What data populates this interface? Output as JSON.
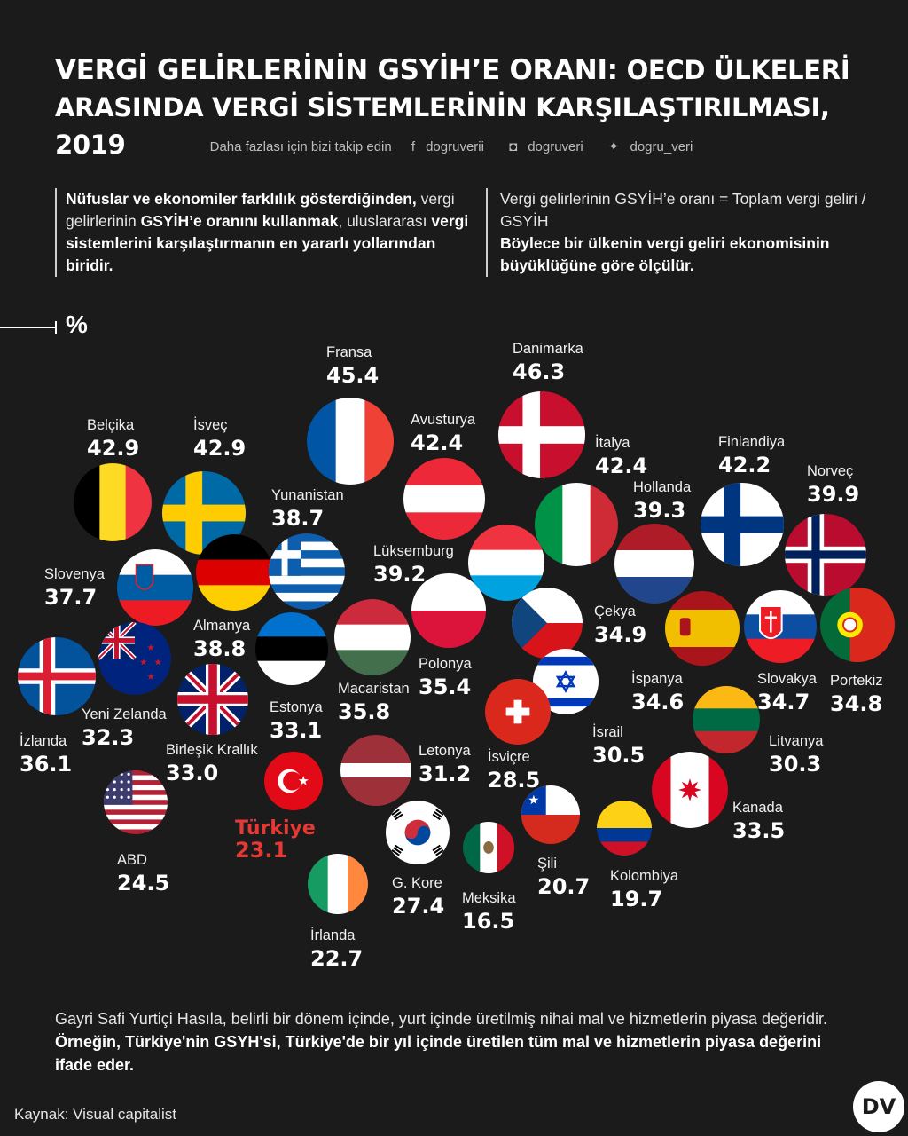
{
  "title_line1_bold": "VERGİ GELİRLERİNİN GSYİH’E ORANI:",
  "title_line1_rest": " OECD ÜLKELERİ",
  "title_line2": "ARASINDA VERGİ SİSTEMLERİNİN KARŞILAŞTIRILMASI, 2019",
  "social": {
    "follow": "Daha fazlası için bizi takip edin",
    "facebook": "dogruverii",
    "instagram": "dogruveri",
    "twitter": "dogru_veri",
    "facebook_icon": "facebook-icon",
    "instagram_icon": "instagram-icon",
    "twitter_icon": "twitter-icon"
  },
  "intro_left": {
    "p1_bold": "Nüfuslar ve ekonomiler farklılık gösterdiğinden,",
    "p2": " vergi gelirlerinin ",
    "p3_bold": "GSYİH’e oranını kullanmak",
    "p4": ", uluslararası ",
    "p5_bold": "vergi sistemlerini karşılaştırmanın en yararlı yollarından biridir."
  },
  "intro_right": {
    "p1": "Vergi gelirlerinin GSYİH’e oranı = Toplam vergi geliri / GSYİH",
    "p2_bold": "Böylece bir ülkenin vergi geliri ekonomisinin büyüklüğüne göre ölçülür."
  },
  "unit": "%",
  "footer": {
    "p1": "Gayri Safi Yurtiçi Hasıla, belirli bir dönem içinde, yurt içinde üretilmiş nihai mal ve hizmetlerin piyasa değeridir. ",
    "p2_bold": "Örneğin, Türkiye'nin GSYH'si, Türkiye'de bir yıl içinde üretilen tüm mal ve hizmetlerin piyasa değerini ifade eder."
  },
  "source": "Kaynak: Visual capitalist",
  "logo": "DV",
  "chart_data": {
    "type": "bubble",
    "title": "Vergi gelirlerinin GSYİH'e oranı, 2019",
    "unit": "%",
    "highlight_color": "#e53935",
    "highlight": "Türkiye",
    "points": [
      {
        "name": "Danimarka",
        "value": 46.3,
        "flag": "denmark"
      },
      {
        "name": "Fransa",
        "value": 45.4,
        "flag": "france"
      },
      {
        "name": "Belçika",
        "value": 42.9,
        "flag": "belgium"
      },
      {
        "name": "İsveç",
        "value": 42.9,
        "flag": "sweden"
      },
      {
        "name": "Avusturya",
        "value": 42.4,
        "flag": "austria"
      },
      {
        "name": "İtalya",
        "value": 42.4,
        "flag": "italy"
      },
      {
        "name": "Finlandiya",
        "value": 42.2,
        "flag": "finland"
      },
      {
        "name": "Norveç",
        "value": 39.9,
        "flag": "norway"
      },
      {
        "name": "Hollanda",
        "value": 39.3,
        "flag": "netherlands"
      },
      {
        "name": "Lüksemburg",
        "value": 39.2,
        "flag": "luxembourg"
      },
      {
        "name": "Almanya",
        "value": 38.8,
        "flag": "germany"
      },
      {
        "name": "Yunanistan",
        "value": 38.7,
        "flag": "greece"
      },
      {
        "name": "Slovenya",
        "value": 37.7,
        "flag": "slovenia"
      },
      {
        "name": "İzlanda",
        "value": 36.1,
        "flag": "iceland"
      },
      {
        "name": "Macaristan",
        "value": 35.8,
        "flag": "hungary"
      },
      {
        "name": "Polonya",
        "value": 35.4,
        "flag": "poland"
      },
      {
        "name": "Çekya",
        "value": 34.9,
        "flag": "czechia"
      },
      {
        "name": "Portekiz",
        "value": 34.8,
        "flag": "portugal"
      },
      {
        "name": "Slovakya",
        "value": 34.7,
        "flag": "slovakia"
      },
      {
        "name": "İspanya",
        "value": 34.6,
        "flag": "spain"
      },
      {
        "name": "Kanada",
        "value": 33.5,
        "flag": "canada"
      },
      {
        "name": "Estonya",
        "value": 33.1,
        "flag": "estonia"
      },
      {
        "name": "Birleşik Krallık",
        "value": 33.0,
        "flag": "uk"
      },
      {
        "name": "Yeni Zelanda",
        "value": 32.3,
        "flag": "newzealand"
      },
      {
        "name": "Letonya",
        "value": 31.2,
        "flag": "latvia"
      },
      {
        "name": "İsrail",
        "value": 30.5,
        "flag": "israel"
      },
      {
        "name": "Litvanya",
        "value": 30.3,
        "flag": "lithuania"
      },
      {
        "name": "İsviçre",
        "value": 28.5,
        "flag": "switzerland"
      },
      {
        "name": "G. Kore",
        "value": 27.4,
        "flag": "korea"
      },
      {
        "name": "ABD",
        "value": 24.5,
        "flag": "usa"
      },
      {
        "name": "Türkiye",
        "value": 23.1,
        "flag": "turkey"
      },
      {
        "name": "İrlanda",
        "value": 22.7,
        "flag": "ireland"
      },
      {
        "name": "Şili",
        "value": 20.7,
        "flag": "chile"
      },
      {
        "name": "Kolombiya",
        "value": 19.7,
        "flag": "colombia"
      },
      {
        "name": "Meksika",
        "value": 16.5,
        "flag": "mexico"
      }
    ]
  }
}
